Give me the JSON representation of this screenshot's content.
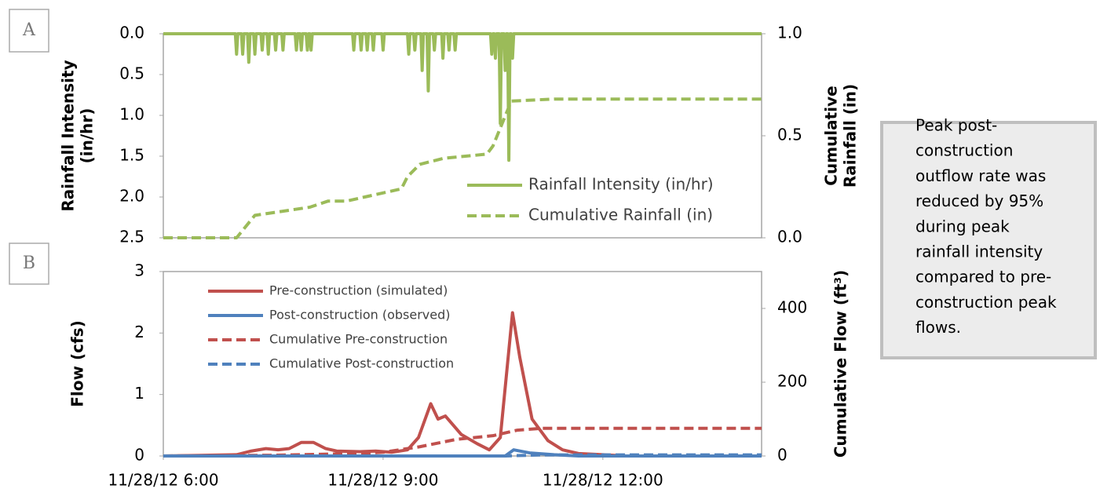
{
  "chart_data": [
    {
      "type": "line",
      "panel_label": "A",
      "ylabel": [
        "Rainfall Intensity",
        "(in/hr)"
      ],
      "y2label": [
        "Cumulative",
        "Rainfall (in)"
      ],
      "xlim": [
        "11/28/12 6:00",
        "11/28/12 14:10"
      ],
      "ylim": [
        0,
        2.5
      ],
      "y_inverted": true,
      "yticks": [
        {
          "value": 0,
          "label": "0.0"
        },
        {
          "value": 0.5,
          "label": "0.5"
        },
        {
          "value": 1,
          "label": "1.0"
        },
        {
          "value": 1.5,
          "label": "1.5"
        },
        {
          "value": 2,
          "label": "2.0"
        },
        {
          "value": 2.5,
          "label": "2.5"
        }
      ],
      "y2lim": [
        0,
        1
      ],
      "y2ticks": [
        {
          "value": 0,
          "label": "0.0"
        },
        {
          "value": 0.5,
          "label": "0.5"
        },
        {
          "value": 1,
          "label": "1.0"
        }
      ],
      "legend": "lower right",
      "series": [
        {
          "name": "Rainfall Intensity (in/hr)",
          "color": "#9bbb59",
          "dash": false,
          "x": [
            "11/28/12 6:00",
            "11/28/12 6:59",
            "11/28/12 7:00",
            "11/28/12 7:01",
            "11/28/12 7:04",
            "11/28/12 7:05",
            "11/28/12 7:06",
            "11/28/12 7:09",
            "11/28/12 7:10",
            "11/28/12 7:11",
            "11/28/12 7:14",
            "11/28/12 7:15",
            "11/28/12 7:16",
            "11/28/12 7:20",
            "11/28/12 7:21",
            "11/28/12 7:22",
            "11/28/12 7:25",
            "11/28/12 7:26",
            "11/28/12 7:27",
            "11/28/12 7:31",
            "11/28/12 7:32",
            "11/28/12 7:33",
            "11/28/12 7:37",
            "11/28/12 7:38",
            "11/28/12 7:39",
            "11/28/12 7:48",
            "11/28/12 7:49",
            "11/28/12 7:50",
            "11/28/12 7:52",
            "11/28/12 7:53",
            "11/28/12 7:54",
            "11/28/12 7:57",
            "11/28/12 7:58",
            "11/28/12 7:59",
            "11/28/12 8:00",
            "11/28/12 8:01",
            "11/28/12 8:02",
            "11/28/12 8:35",
            "11/28/12 8:36",
            "11/28/12 8:37",
            "11/28/12 8:41",
            "11/28/12 8:42",
            "11/28/12 8:43",
            "11/28/12 8:46",
            "11/28/12 8:47",
            "11/28/12 8:48",
            "11/28/12 8:51",
            "11/28/12 8:52",
            "11/28/12 8:53",
            "11/28/12 8:59",
            "11/28/12 9:00",
            "11/28/12 9:01",
            "11/28/12 9:20",
            "11/28/12 9:21",
            "11/28/12 9:22",
            "11/28/12 9:25",
            "11/28/12 9:26",
            "11/28/12 9:27",
            "11/28/12 9:31",
            "11/28/12 9:32",
            "11/28/12 9:33",
            "11/28/12 9:36",
            "11/28/12 9:37",
            "11/28/12 9:38",
            "11/28/12 9:41",
            "11/28/12 9:42",
            "11/28/12 9:43",
            "11/28/12 9:48",
            "11/28/12 9:49",
            "11/28/12 9:50",
            "11/28/12 9:53",
            "11/28/12 9:54",
            "11/28/12 9:55",
            "11/28/12 9:58",
            "11/28/12 9:59",
            "11/28/12 10:00",
            "11/28/12 10:28",
            "11/28/12 10:29",
            "11/28/12 10:30",
            "11/28/12 10:31",
            "11/28/12 10:32",
            "11/28/12 10:33",
            "11/28/12 10:35",
            "11/28/12 10:36",
            "11/28/12 10:37",
            "11/28/12 10:39",
            "11/28/12 10:40",
            "11/28/12 10:41",
            "11/28/12 10:42",
            "11/28/12 10:43",
            "11/28/12 10:44",
            "11/28/12 10:45",
            "11/28/12 10:46",
            "11/28/12 10:47",
            "11/28/12 14:10"
          ],
          "values": [
            0,
            0,
            0.25,
            0,
            0,
            0.25,
            0,
            0,
            0.35,
            0,
            0,
            0.25,
            0,
            0,
            0.2,
            0,
            0,
            0.25,
            0,
            0,
            0.2,
            0,
            0,
            0.2,
            0,
            0,
            0.2,
            0,
            0,
            0.2,
            0,
            0,
            0.2,
            0,
            0,
            0.2,
            0,
            0,
            0.2,
            0,
            0,
            0.2,
            0,
            0,
            0.2,
            0,
            0,
            0.2,
            0,
            0,
            0.2,
            0,
            0,
            0.25,
            0,
            0,
            0.2,
            0,
            0,
            0.45,
            0,
            0,
            0.7,
            0,
            0,
            0.2,
            0,
            0,
            0.3,
            0,
            0,
            0.2,
            0,
            0,
            0.2,
            0,
            0,
            0.25,
            0,
            0,
            0.3,
            0,
            0,
            1.1,
            0,
            0,
            0.45,
            0,
            0,
            1.55,
            0,
            0,
            0.3,
            0,
            0
          ]
        },
        {
          "name": "Cumulative Rainfall (in)",
          "color": "#9bbb59",
          "dash": true,
          "axis": "y2",
          "x": [
            "11/28/12 6:00",
            "11/28/12 7:00",
            "11/28/12 7:15",
            "11/28/12 8:00",
            "11/28/12 8:15",
            "11/28/12 8:30",
            "11/28/12 8:45",
            "11/28/12 9:00",
            "11/28/12 9:15",
            "11/28/12 9:20",
            "11/28/12 9:30",
            "11/28/12 9:50",
            "11/28/12 10:25",
            "11/28/12 10:30",
            "11/28/12 10:45",
            "11/28/12 11:20",
            "11/28/12 14:10"
          ],
          "values": [
            0,
            0,
            0.11,
            0.15,
            0.18,
            0.18,
            0.2,
            0.22,
            0.24,
            0.3,
            0.36,
            0.39,
            0.41,
            0.45,
            0.67,
            0.68,
            0.68
          ]
        }
      ]
    },
    {
      "type": "line",
      "panel_label": "B",
      "ylabel": [
        "Flow (cfs)"
      ],
      "y2label": [
        "Cumulative Flow (ft³)"
      ],
      "xlim": [
        "11/28/12 6:00",
        "11/28/12 14:10"
      ],
      "xticks": [
        "11/28/12 6:00",
        "11/28/12 9:00",
        "11/28/12 12:00"
      ],
      "ylim": [
        0,
        3
      ],
      "yticks": [
        0,
        1,
        2,
        3
      ],
      "y2lim": [
        0,
        500
      ],
      "y2ticks": [
        0,
        200,
        400
      ],
      "legend": "upper left",
      "series": [
        {
          "name": "Pre-construction (simulated)",
          "color": "#c0504d",
          "dash": false,
          "x": [
            "11/28/12 6:00",
            "11/28/12 7:00",
            "11/28/12 7:12",
            "11/28/12 7:24",
            "11/28/12 7:34",
            "11/28/12 7:43",
            "11/28/12 7:53",
            "11/28/12 8:03",
            "11/28/12 8:13",
            "11/28/12 8:22",
            "11/28/12 8:41",
            "11/28/12 8:54",
            "11/28/12 9:07",
            "11/28/12 9:20",
            "11/28/12 9:29",
            "11/28/12 9:39",
            "11/28/12 9:45",
            "11/28/12 9:51",
            "11/28/12 10:04",
            "11/28/12 10:17",
            "11/28/12 10:27",
            "11/28/12 10:36",
            "11/28/12 10:46",
            "11/28/12 10:52",
            "11/28/12 11:02",
            "11/28/12 11:15",
            "11/28/12 11:27",
            "11/28/12 11:40",
            "11/28/12 12:00",
            "11/28/12 12:19",
            "11/28/12 14:10"
          ],
          "values": [
            0,
            0.02,
            0.08,
            0.12,
            0.1,
            0.12,
            0.22,
            0.22,
            0.12,
            0.08,
            0.07,
            0.08,
            0.06,
            0.1,
            0.3,
            0.85,
            0.6,
            0.65,
            0.35,
            0.2,
            0.1,
            0.3,
            2.33,
            1.6,
            0.6,
            0.25,
            0.1,
            0.04,
            0.02,
            0,
            0
          ]
        },
        {
          "name": "Post-construction (observed)",
          "color": "#4f81bd",
          "dash": false,
          "x": [
            "11/28/12 6:00",
            "11/28/12 10:40",
            "11/28/12 10:47",
            "11/28/12 11:00",
            "11/28/12 11:20",
            "11/28/12 11:40",
            "11/28/12 14:10"
          ],
          "values": [
            0,
            0,
            0.1,
            0.05,
            0.02,
            0,
            0
          ]
        },
        {
          "name": "Cumulative Pre-construction",
          "color": "#c0504d",
          "dash": true,
          "axis": "y2",
          "x": [
            "11/28/12 6:00",
            "11/28/12 7:30",
            "11/28/12 8:30",
            "11/28/12 9:00",
            "11/28/12 9:30",
            "11/28/12 10:00",
            "11/28/12 10:30",
            "11/28/12 10:50",
            "11/28/12 11:10",
            "11/28/12 14:10"
          ],
          "values": [
            0,
            2,
            6,
            10,
            25,
            45,
            55,
            70,
            75,
            75
          ]
        },
        {
          "name": "Cumulative Post-construction",
          "color": "#4f81bd",
          "dash": true,
          "axis": "y2",
          "x": [
            "11/28/12 6:00",
            "11/28/12 10:40",
            "11/28/12 11:10",
            "11/28/12 14:10"
          ],
          "values": [
            0,
            0,
            3,
            3
          ]
        }
      ]
    }
  ],
  "note": [
    "Peak post-",
    "construction",
    "outflow rate was",
    "reduced by 95%",
    "during peak",
    "rainfall intensity",
    "compared to pre-",
    "construction peak",
    "flows."
  ]
}
